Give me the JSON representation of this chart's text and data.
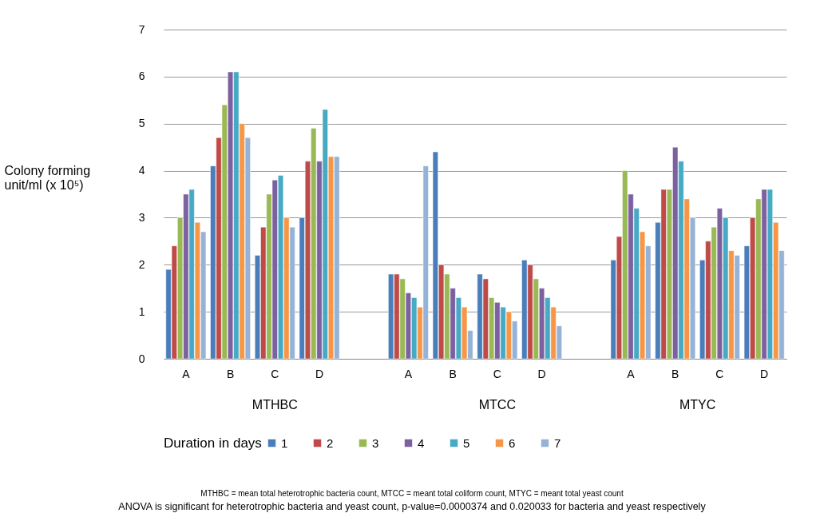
{
  "chart_data": {
    "type": "bar",
    "ylabel": "Colony forming unit/ml (x 10⁵)",
    "legend_title": "Duration in days",
    "categories": [
      "A",
      "B",
      "C",
      "D",
      null,
      "A",
      "B",
      "C",
      "D",
      null,
      "A",
      "B",
      "C",
      "D"
    ],
    "series": [
      {
        "name": "1",
        "color": "#4a7ebb",
        "values": [
          1.9,
          4.1,
          2.2,
          3.0,
          null,
          1.8,
          4.4,
          1.8,
          2.1,
          null,
          2.1,
          2.9,
          2.1,
          2.4
        ]
      },
      {
        "name": "2",
        "color": "#be4b48",
        "values": [
          2.4,
          4.7,
          2.8,
          4.2,
          null,
          1.8,
          2.0,
          1.7,
          2.0,
          null,
          2.6,
          3.6,
          2.5,
          3.0
        ]
      },
      {
        "name": "3",
        "color": "#98b954",
        "values": [
          3.0,
          5.4,
          3.5,
          4.9,
          null,
          1.7,
          1.8,
          1.3,
          1.7,
          null,
          4.0,
          3.6,
          2.8,
          3.4
        ]
      },
      {
        "name": "4",
        "color": "#7d60a0",
        "values": [
          3.5,
          6.1,
          3.8,
          4.2,
          null,
          1.4,
          1.5,
          1.2,
          1.5,
          null,
          3.5,
          4.5,
          3.2,
          3.6
        ]
      },
      {
        "name": "5",
        "color": "#46aac5",
        "values": [
          3.6,
          6.1,
          3.9,
          5.3,
          null,
          1.3,
          1.3,
          1.1,
          1.3,
          null,
          3.2,
          4.2,
          3.0,
          3.6
        ]
      },
      {
        "name": "6",
        "color": "#f79646",
        "values": [
          2.9,
          5.0,
          3.0,
          4.3,
          null,
          1.1,
          1.1,
          1.0,
          1.1,
          null,
          2.7,
          3.4,
          2.3,
          2.9
        ]
      },
      {
        "name": "7",
        "color": "#95b3d7",
        "values": [
          2.7,
          4.7,
          2.8,
          4.3,
          null,
          4.1,
          0.6,
          0.8,
          0.7,
          null,
          2.4,
          3.0,
          2.2,
          2.3
        ]
      }
    ],
    "ylim": [
      0,
      7
    ],
    "yticks": [
      0,
      1,
      2,
      3,
      4,
      5,
      6,
      7
    ],
    "grid": "y",
    "legend": "bottom",
    "annotations": [
      "MTHBC",
      "MTCC",
      "MTYC",
      "MTHBC = mean total heterotrophic bacteria count,            MTCC = meant total coliform count, MTYC = meant total yeast count",
      "ANOVA is significant for heterotrophic bacteria and yeast count, p-value=0.0000374 and 0.020033 for bacteria and yeast respectively"
    ]
  }
}
